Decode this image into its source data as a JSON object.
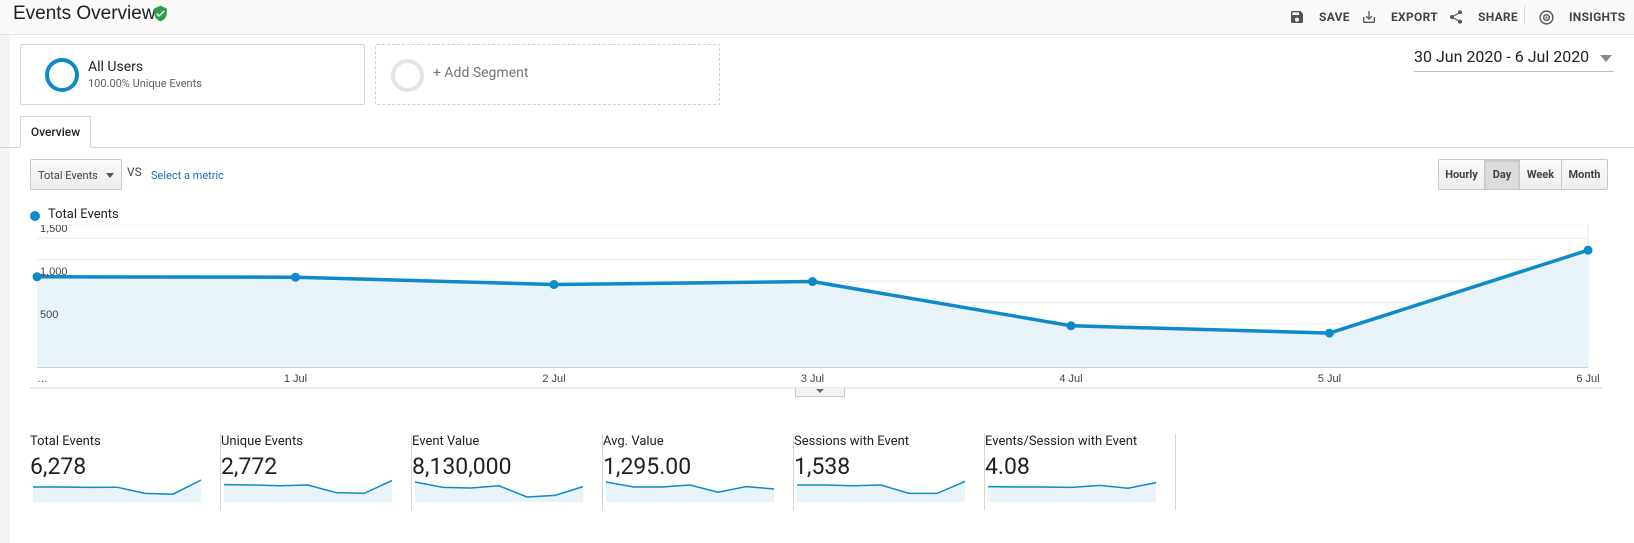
{
  "header": {
    "title": "Events Overview",
    "actions": {
      "save": "SAVE",
      "export": "EXPORT",
      "share": "SHARE",
      "insights": "INSIGHTS"
    }
  },
  "segments": {
    "active": {
      "name": "All Users",
      "subtitle": "100.00% Unique Events"
    },
    "add_label": "+ Add Segment"
  },
  "date_range": "30 Jun 2020 - 6 Jul 2020",
  "tabs": {
    "overview": "Overview"
  },
  "controls": {
    "metric": "Total Events",
    "vs": "VS",
    "select_metric": "Select a metric",
    "granularity": [
      "Hourly",
      "Day",
      "Week",
      "Month"
    ],
    "granularity_active": "Day"
  },
  "legend": {
    "label": "Total Events",
    "color": "#0d8ac9"
  },
  "chart_data": {
    "type": "line",
    "title": "",
    "series": [
      {
        "name": "Total Events",
        "values": [
          1050,
          1045,
          960,
          995,
          480,
          395,
          1360
        ]
      }
    ],
    "categories": [
      "…",
      "1 Jul",
      "2 Jul",
      "3 Jul",
      "4 Jul",
      "5 Jul",
      "6 Jul"
    ],
    "y_ticks": [
      "500",
      "1,000",
      "1,500"
    ],
    "ylim": [
      0,
      1500
    ],
    "xlabel": "",
    "ylabel": "",
    "fill": "area",
    "color": "#0d8ac9"
  },
  "scorecards": [
    {
      "title": "Total Events",
      "value": "6,278",
      "spark": [
        0.6,
        0.6,
        0.58,
        0.59,
        0.28,
        0.24,
        0.95
      ]
    },
    {
      "title": "Unique Events",
      "value": "2,772",
      "spark": [
        0.72,
        0.7,
        0.66,
        0.7,
        0.32,
        0.28,
        0.92
      ]
    },
    {
      "title": "Event Value",
      "value": "8,130,000",
      "spark": [
        0.85,
        0.58,
        0.55,
        0.66,
        0.1,
        0.18,
        0.62
      ]
    },
    {
      "title": "Avg. Value",
      "value": "1,295.00",
      "spark": [
        0.85,
        0.6,
        0.6,
        0.7,
        0.34,
        0.62,
        0.5
      ]
    },
    {
      "title": "Sessions with Event",
      "value": "1,538",
      "spark": [
        0.7,
        0.7,
        0.66,
        0.7,
        0.28,
        0.28,
        0.88
      ]
    },
    {
      "title": "Events/Session with Event",
      "value": "4.08",
      "spark": [
        0.62,
        0.6,
        0.6,
        0.58,
        0.68,
        0.54,
        0.82
      ]
    }
  ]
}
